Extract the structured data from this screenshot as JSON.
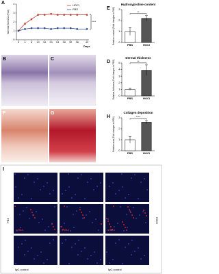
{
  "chart_data": [
    {
      "type": "line",
      "panel": "A",
      "ylabel": "Skin fold thickness (Fold)",
      "xlabel": "Days",
      "x": [
        0,
        4,
        8,
        12,
        16,
        20,
        24,
        28,
        32,
        36,
        42
      ],
      "xlim": [
        0,
        42
      ],
      "xticks": [
        0,
        4,
        8,
        12,
        16,
        20,
        24,
        28,
        32,
        36,
        42
      ],
      "ylim": [
        0,
        4
      ],
      "yticks": [
        0,
        1,
        2,
        3,
        4
      ],
      "significance": "****",
      "series": [
        {
          "name": "HOCl",
          "color": "#c0392b",
          "values": [
            1,
            1.8,
            2.3,
            2.8,
            2.8,
            2.9,
            2.8,
            2.8,
            2.8,
            2.8,
            2.8
          ]
        },
        {
          "name": "PBS",
          "color": "#2c4a8c",
          "values": [
            1,
            1.2,
            1.3,
            1.3,
            1.3,
            1.2,
            1.3,
            1.3,
            1.3,
            1.2,
            1.2
          ]
        }
      ]
    },
    {
      "type": "bar",
      "panel": "E",
      "title": "Hydroxyproline content",
      "ylabel": "Relative content (Fold changes to PBS)",
      "categories": [
        "PBS",
        "HOCl"
      ],
      "values": [
        1,
        2.2
      ],
      "errors": [
        0.35,
        0.25
      ],
      "colors": [
        "#ffffff",
        "#555555"
      ],
      "ylim": [
        0,
        3
      ],
      "yticks": [
        0,
        1,
        2,
        3
      ],
      "significance": "**"
    },
    {
      "type": "bar",
      "panel": "D",
      "title": "Dermal thickness",
      "ylabel": "Relative thickness (Fold changes to PBS)",
      "categories": [
        "PBS",
        "HOCl"
      ],
      "values": [
        1,
        3.9
      ],
      "errors": [
        0.15,
        0.8
      ],
      "colors": [
        "#ffffff",
        "#555555"
      ],
      "ylim": [
        0,
        5
      ],
      "yticks": [
        0,
        1,
        2,
        3,
        4,
        5
      ],
      "significance": "**"
    },
    {
      "type": "bar",
      "panel": "H",
      "title": "Collagen deposition",
      "ylabel": "Relative area (Fold changes to PBS)",
      "categories": [
        "PBS",
        "HOCl"
      ],
      "values": [
        1,
        2.6
      ],
      "errors": [
        0.3,
        0.15
      ],
      "colors": [
        "#ffffff",
        "#555555"
      ],
      "ylim": [
        0,
        3
      ],
      "yticks": [
        0,
        1,
        2,
        3
      ],
      "significance": "****"
    }
  ],
  "figure": {
    "images": [
      "B",
      "C",
      "F",
      "G"
    ],
    "panel_i": {
      "label": "I",
      "groups": [
        "PBS",
        "HOCl"
      ],
      "marker": "αSMA",
      "control": "IgG control"
    }
  }
}
